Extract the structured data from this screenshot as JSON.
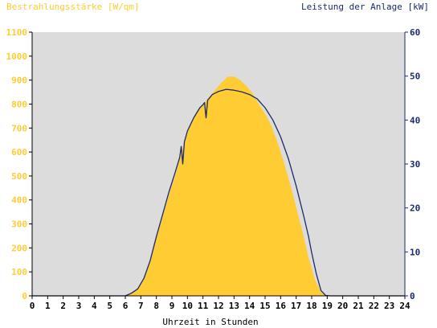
{
  "chart_data": {
    "type": "area",
    "left_axis_title": "Bestrahlungsstärke [W/qm]",
    "right_axis_title": "Leistung der Anlage [kW]",
    "xlabel": "Uhrzeit in Stunden",
    "xlim": [
      0,
      24
    ],
    "ylim_left": [
      0,
      1100
    ],
    "ylim_right": [
      0,
      60
    ],
    "x_ticks": [
      "0",
      "1",
      "2",
      "3",
      "4",
      "5",
      "6",
      "7",
      "8",
      "9",
      "10",
      "11",
      "12",
      "13",
      "14",
      "15",
      "16",
      "17",
      "18",
      "19",
      "20",
      "21",
      "22",
      "23",
      "24"
    ],
    "y_ticks_left": [
      "0",
      "100",
      "200",
      "300",
      "400",
      "500",
      "600",
      "700",
      "800",
      "900",
      "1000",
      "1100"
    ],
    "y_ticks_right": [
      "0",
      "10",
      "20",
      "30",
      "40",
      "50",
      "60"
    ],
    "grid": false,
    "colors": {
      "irradiance": "#ffcc33",
      "power": "#1a2a6c",
      "plot_bg": "#dcdcdc",
      "left_axis_text": "#ffcc33",
      "right_axis_text": "#1a2a6c"
    },
    "series": [
      {
        "name": "Bestrahlungsstärke [W/qm]",
        "axis": "left",
        "style": "area",
        "points": [
          [
            0,
            0
          ],
          [
            6.0,
            0
          ],
          [
            6.3,
            12
          ],
          [
            6.8,
            30
          ],
          [
            7.2,
            70
          ],
          [
            7.6,
            140
          ],
          [
            8.0,
            240
          ],
          [
            8.4,
            330
          ],
          [
            8.8,
            420
          ],
          [
            9.2,
            500
          ],
          [
            9.5,
            570
          ],
          [
            9.8,
            640
          ],
          [
            10.2,
            720
          ],
          [
            10.6,
            770
          ],
          [
            11.0,
            800
          ],
          [
            11.4,
            830
          ],
          [
            11.8,
            860
          ],
          [
            12.2,
            890
          ],
          [
            12.6,
            915
          ],
          [
            13.0,
            915
          ],
          [
            13.4,
            900
          ],
          [
            13.8,
            875
          ],
          [
            14.2,
            845
          ],
          [
            14.6,
            800
          ],
          [
            15.0,
            760
          ],
          [
            15.4,
            710
          ],
          [
            15.8,
            640
          ],
          [
            16.2,
            560
          ],
          [
            16.6,
            470
          ],
          [
            17.0,
            370
          ],
          [
            17.4,
            270
          ],
          [
            17.8,
            160
          ],
          [
            18.2,
            70
          ],
          [
            18.6,
            15
          ],
          [
            19.0,
            0
          ],
          [
            24,
            0
          ]
        ]
      },
      {
        "name": "Leistung der Anlage [kW]",
        "axis": "right",
        "style": "line",
        "points": [
          [
            0,
            0
          ],
          [
            6.0,
            0
          ],
          [
            6.4,
            0.6
          ],
          [
            6.8,
            1.6
          ],
          [
            7.2,
            4.0
          ],
          [
            7.6,
            8.0
          ],
          [
            8.0,
            13.5
          ],
          [
            8.4,
            18.5
          ],
          [
            8.8,
            23.5
          ],
          [
            9.2,
            28.0
          ],
          [
            9.5,
            31.5
          ],
          [
            9.6,
            34.0
          ],
          [
            9.7,
            30.0
          ],
          [
            9.8,
            35.0
          ],
          [
            10.0,
            37.5
          ],
          [
            10.4,
            40.5
          ],
          [
            10.8,
            42.8
          ],
          [
            11.0,
            43.5
          ],
          [
            11.1,
            44.0
          ],
          [
            11.2,
            40.5
          ],
          [
            11.3,
            44.5
          ],
          [
            11.6,
            45.8
          ],
          [
            12.0,
            46.5
          ],
          [
            12.5,
            47.0
          ],
          [
            13.0,
            46.8
          ],
          [
            13.5,
            46.4
          ],
          [
            14.0,
            45.8
          ],
          [
            14.5,
            44.8
          ],
          [
            15.0,
            42.8
          ],
          [
            15.5,
            40.0
          ],
          [
            16.0,
            36.2
          ],
          [
            16.5,
            31.2
          ],
          [
            17.0,
            25.0
          ],
          [
            17.5,
            18.0
          ],
          [
            17.8,
            13.5
          ],
          [
            18.0,
            9.8
          ],
          [
            18.3,
            5.0
          ],
          [
            18.6,
            1.2
          ],
          [
            18.9,
            0.1
          ],
          [
            19.2,
            0
          ],
          [
            24,
            0
          ]
        ]
      }
    ]
  }
}
